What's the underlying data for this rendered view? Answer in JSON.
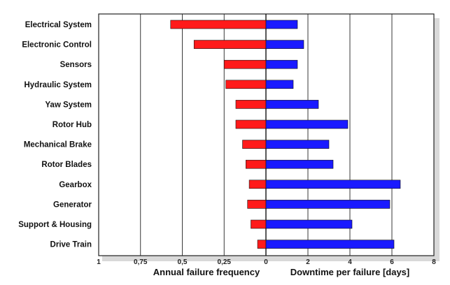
{
  "chart_data": {
    "type": "bar",
    "categories": [
      "Electrical System",
      "Electronic Control",
      "Sensors",
      "Hydraulic System",
      "Yaw System",
      "Rotor Hub",
      "Mechanical Brake",
      "Rotor Blades",
      "Gearbox",
      "Generator",
      "Support & Housing",
      "Drive Train"
    ],
    "series": [
      {
        "name": "Annual failure frequency",
        "color": "#ff1a1a",
        "direction": "left",
        "values": [
          0.57,
          0.43,
          0.25,
          0.24,
          0.18,
          0.18,
          0.14,
          0.12,
          0.1,
          0.11,
          0.09,
          0.05
        ]
      },
      {
        "name": "Downtime per failure [days]",
        "color": "#1a1aff",
        "direction": "right",
        "values": [
          1.5,
          1.8,
          1.5,
          1.3,
          2.5,
          3.9,
          3.0,
          3.2,
          6.4,
          5.9,
          4.1,
          6.1
        ]
      }
    ],
    "left_axis": {
      "title": "Annual failure frequency",
      "ticks": [
        {
          "value": 1,
          "label": "1"
        },
        {
          "value": 0.75,
          "label": "0,75"
        },
        {
          "value": 0.5,
          "label": "0,5"
        },
        {
          "value": 0.25,
          "label": "0,25"
        },
        {
          "value": 0,
          "label": "0"
        }
      ],
      "range": [
        0,
        1
      ]
    },
    "right_axis": {
      "title": "Downtime per failure [days]",
      "ticks": [
        {
          "value": 2,
          "label": "2"
        },
        {
          "value": 4,
          "label": "4"
        },
        {
          "value": 6,
          "label": "6"
        },
        {
          "value": 8,
          "label": "8"
        }
      ],
      "range": [
        0,
        8
      ]
    },
    "grid": true
  }
}
